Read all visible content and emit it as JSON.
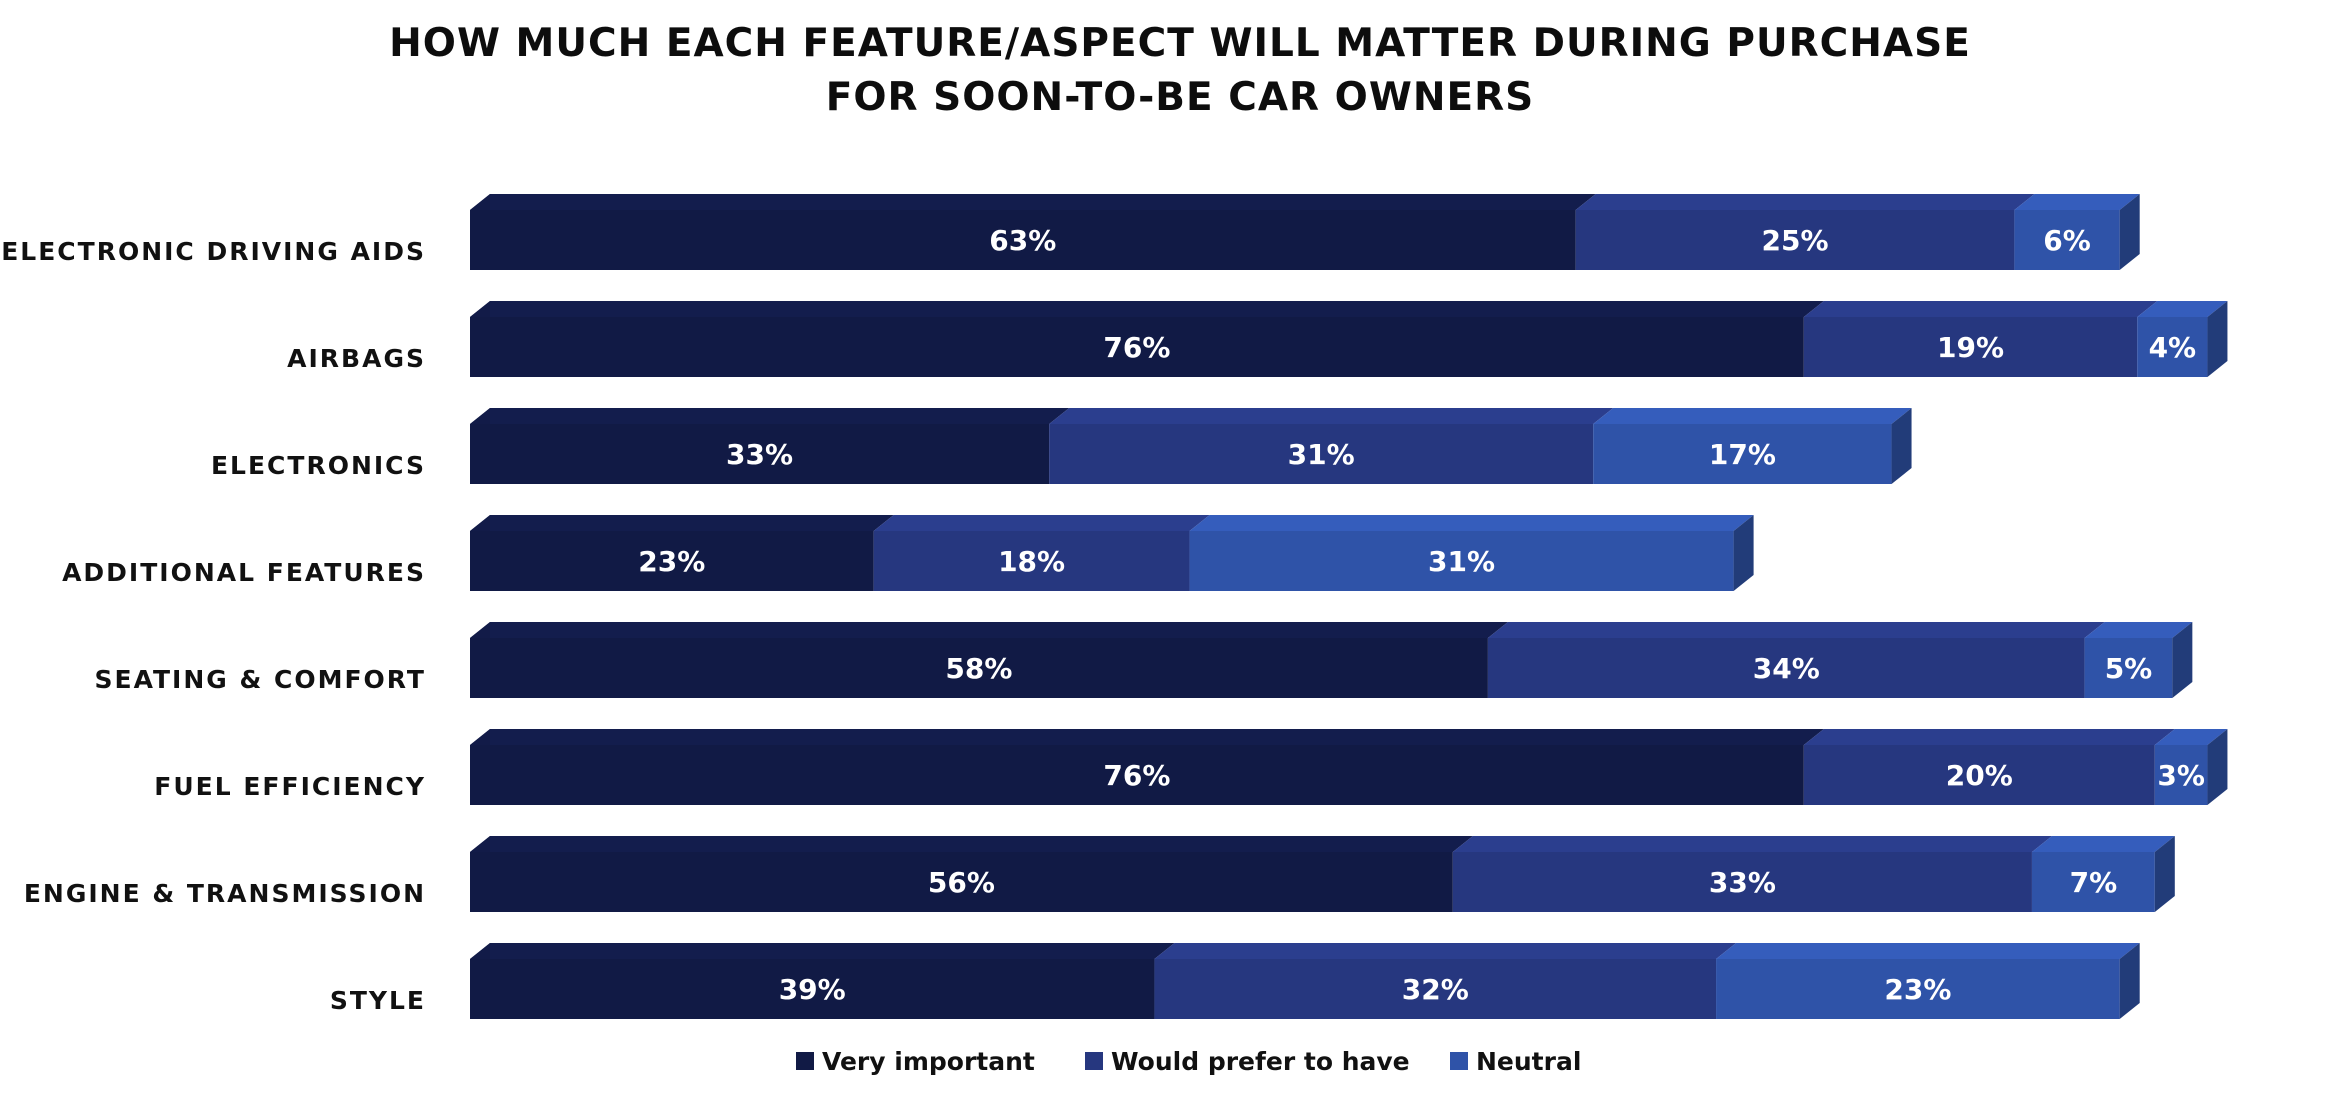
{
  "chart_data": {
    "type": "bar",
    "orientation": "horizontal",
    "stacked": true,
    "title": [
      "HOW MUCH EACH FEATURE/ASPECT WILL MATTER DURING PURCHASE",
      "FOR SOON-TO-BE CAR OWNERS"
    ],
    "categories": [
      "ELECTRONIC DRIVING AIDS",
      "AIRBAGS",
      "ELECTRONICS",
      "ADDITIONAL FEATURES",
      "SEATING & COMFORT",
      "FUEL EFFICIENCY",
      "ENGINE & TRANSMISSION",
      "STYLE"
    ],
    "series": [
      {
        "name": "Very important",
        "values": [
          63,
          76,
          33,
          23,
          58,
          76,
          56,
          39
        ],
        "labels": [
          "63%",
          "76%",
          "33%",
          "23%",
          "58%",
          "76%",
          "56%",
          "39%"
        ],
        "color": "#111a45"
      },
      {
        "name": "Would prefer to have",
        "values": [
          25,
          19,
          31,
          18,
          34,
          20,
          33,
          32
        ],
        "labels": [
          "25%",
          "19%",
          "31%",
          "18%",
          "34%",
          "20%",
          "33%",
          "32%"
        ],
        "color": "#26377f"
      },
      {
        "name": "Neutral",
        "values": [
          6,
          4,
          17,
          31,
          5,
          3,
          7,
          23
        ],
        "labels": [
          "6%",
          "4%",
          "17%",
          "31%",
          "5%",
          "3%",
          "7%",
          "23%"
        ],
        "color": "#2f53a8"
      }
    ],
    "xlim": [
      0,
      100
    ],
    "grid": false,
    "legend_position": "bottom",
    "unit": "%"
  }
}
